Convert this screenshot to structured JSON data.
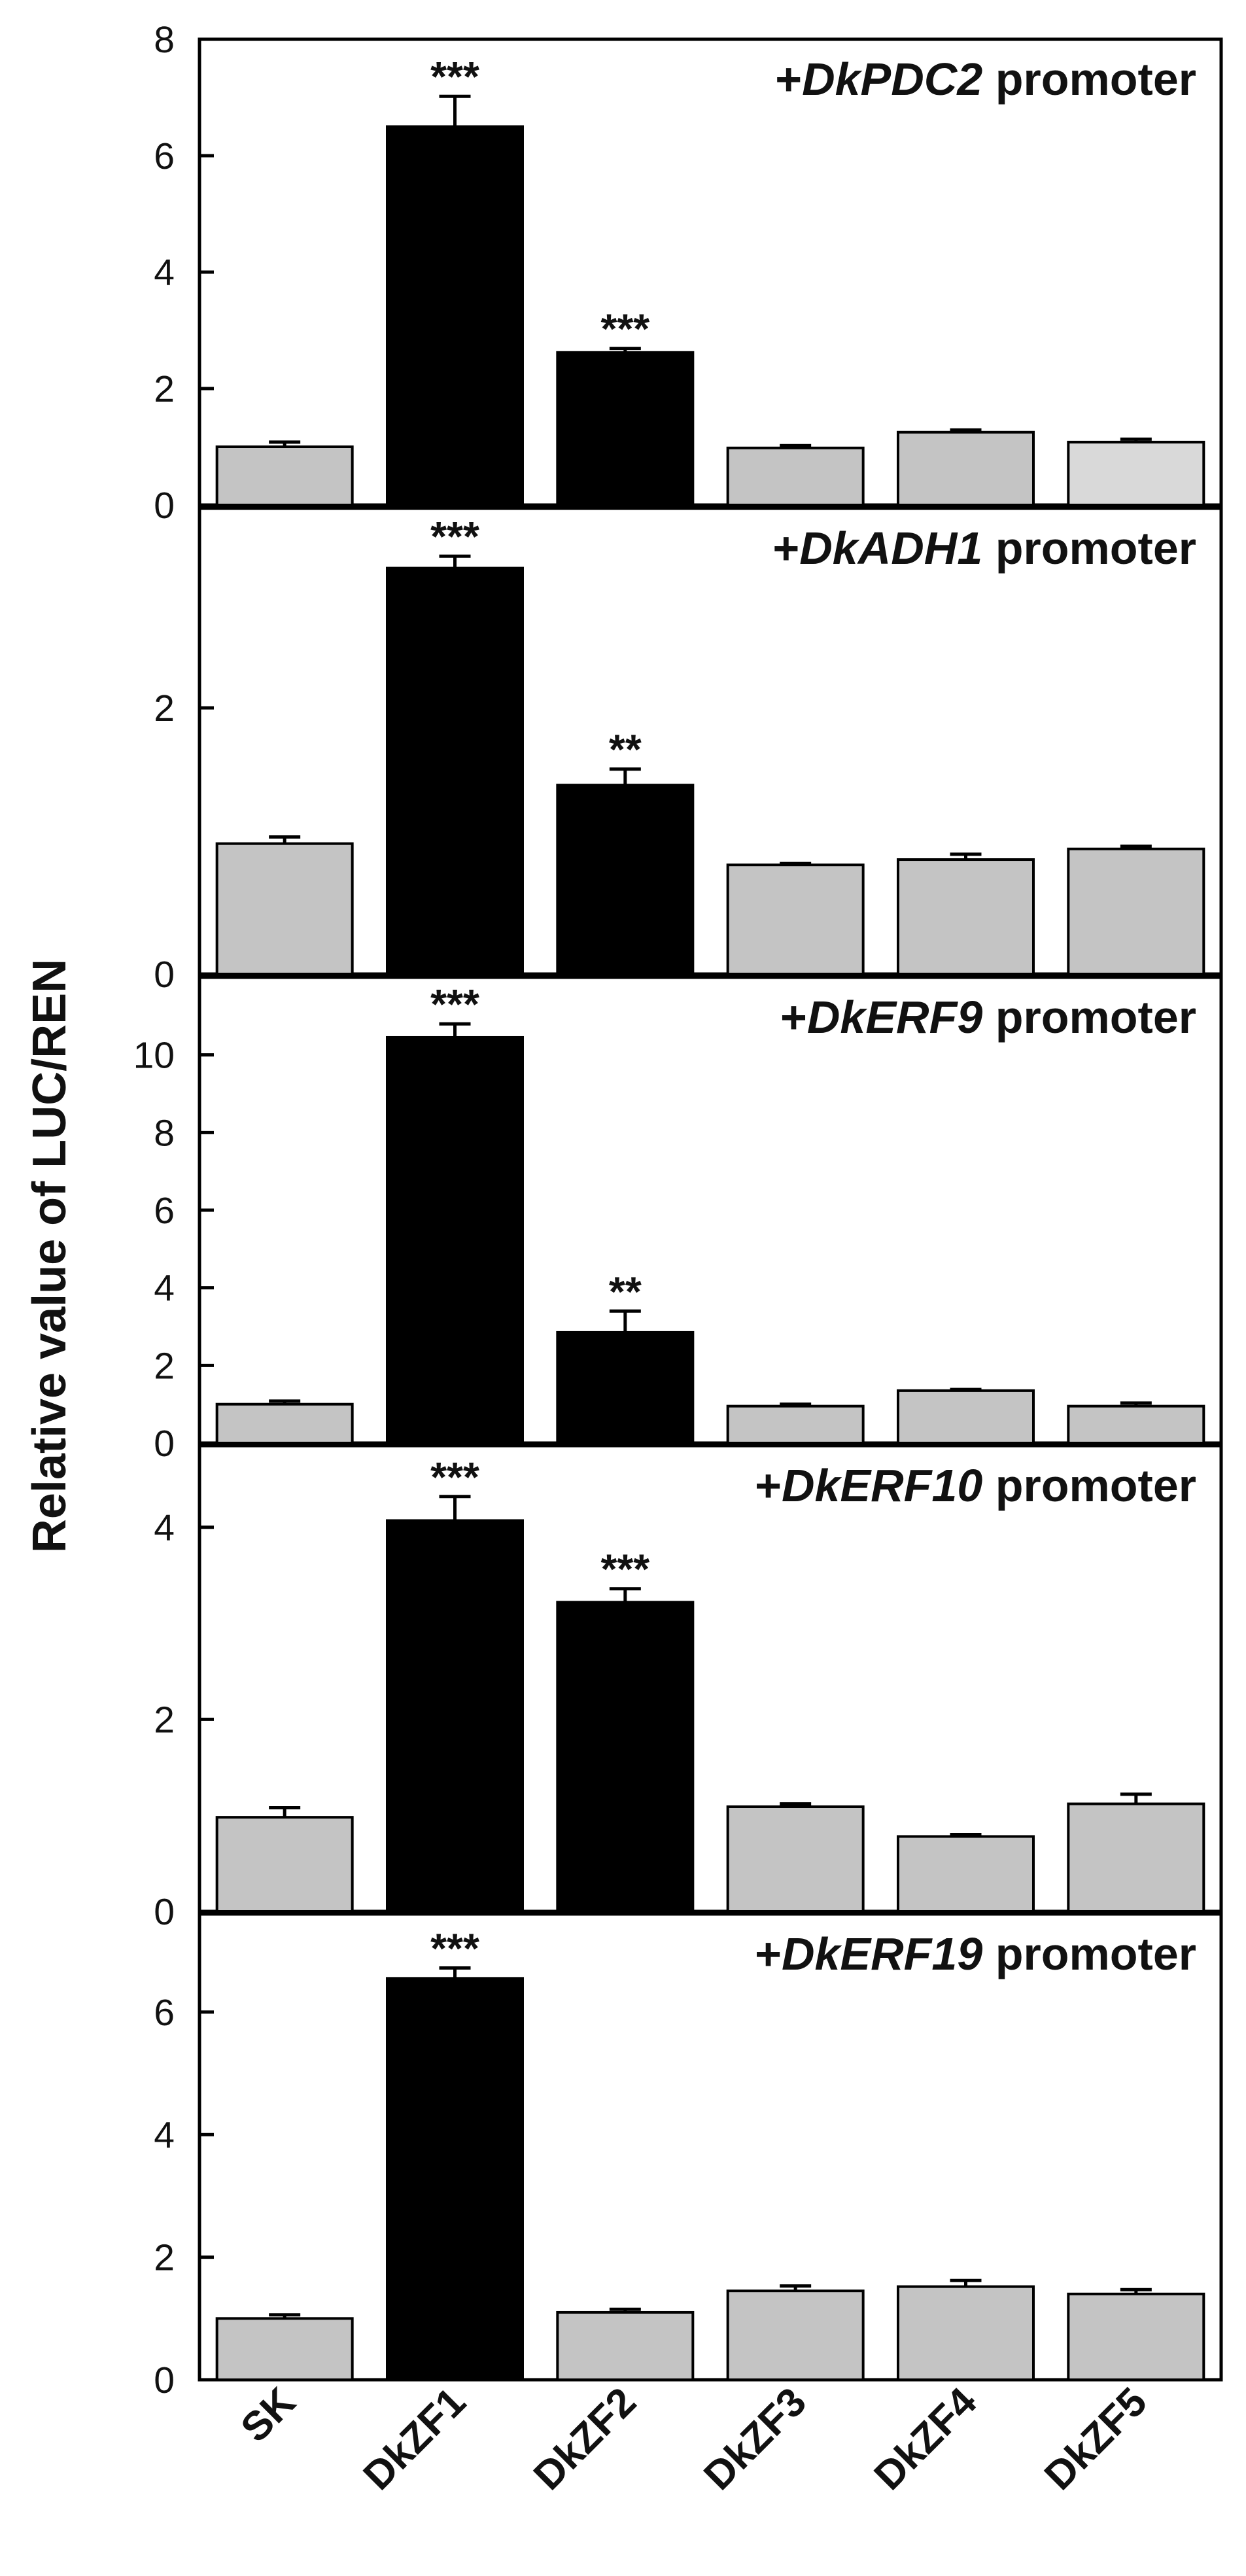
{
  "chart_data": {
    "type": "bar",
    "ylabel": "Relative value of LUC/REN",
    "categories": [
      "SK",
      "DkZF1",
      "DkZF2",
      "DkZF3",
      "DkZF4",
      "DkZF5"
    ],
    "colors": {
      "control": "#c4c4c4",
      "activated": "#000000",
      "last_panel1": "#d9d9d9"
    },
    "panels": [
      {
        "title_prefix": "+",
        "title_gene": "DkPDC2",
        "title_suffix": " promoter",
        "ylim": [
          0,
          8
        ],
        "yticks": [
          "0",
          "2",
          "4",
          "6",
          "8"
        ],
        "values": [
          1.0,
          6.5,
          2.62,
          0.98,
          1.25,
          1.08
        ],
        "errors": [
          0.08,
          0.52,
          0.07,
          0.04,
          0.04,
          0.05
        ],
        "significance": [
          "",
          "***",
          "***",
          "",
          "",
          ""
        ],
        "highlight": [
          false,
          true,
          true,
          false,
          false,
          false
        ]
      },
      {
        "title_prefix": "+",
        "title_gene": "DkADH1",
        "title_suffix": " promoter",
        "ylim": [
          0,
          3.5
        ],
        "yticks": [
          "0",
          "2"
        ],
        "values": [
          0.98,
          3.05,
          1.42,
          0.82,
          0.86,
          0.94
        ],
        "errors": [
          0.05,
          0.09,
          0.12,
          0.01,
          0.04,
          0.02
        ],
        "significance": [
          "",
          "***",
          "**",
          "",
          "",
          ""
        ],
        "highlight": [
          false,
          true,
          true,
          false,
          false,
          false
        ]
      },
      {
        "title_prefix": "+",
        "title_gene": "DkERF9",
        "title_suffix": " promoter",
        "ylim": [
          0,
          12
        ],
        "yticks": [
          "0",
          "2",
          "4",
          "6",
          "8",
          "10"
        ],
        "values": [
          1.0,
          10.45,
          2.85,
          0.95,
          1.35,
          0.95
        ],
        "errors": [
          0.08,
          0.35,
          0.55,
          0.05,
          0.03,
          0.08
        ],
        "significance": [
          "",
          "***",
          "**",
          "",
          "",
          ""
        ],
        "highlight": [
          false,
          true,
          true,
          false,
          false,
          false
        ]
      },
      {
        "title_prefix": "+",
        "title_gene": "DkERF10",
        "title_suffix": " promoter",
        "ylim": [
          0,
          4.85
        ],
        "yticks": [
          "0",
          "2",
          "4"
        ],
        "values": [
          0.98,
          4.07,
          3.22,
          1.09,
          0.78,
          1.12
        ],
        "errors": [
          0.1,
          0.25,
          0.14,
          0.03,
          0.02,
          0.1
        ],
        "significance": [
          "",
          "***",
          "***",
          "",
          "",
          ""
        ],
        "highlight": [
          false,
          true,
          true,
          false,
          false,
          false
        ]
      },
      {
        "title_prefix": "+",
        "title_gene": "DkERF19",
        "title_suffix": " promoter",
        "ylim": [
          0,
          7.6
        ],
        "yticks": [
          "0",
          "2",
          "4",
          "6"
        ],
        "values": [
          1.0,
          6.55,
          1.1,
          1.45,
          1.52,
          1.4
        ],
        "errors": [
          0.06,
          0.17,
          0.05,
          0.08,
          0.1,
          0.07
        ],
        "significance": [
          "",
          "***",
          "",
          "",
          "",
          ""
        ],
        "highlight": [
          false,
          true,
          false,
          false,
          false,
          false
        ]
      }
    ]
  }
}
